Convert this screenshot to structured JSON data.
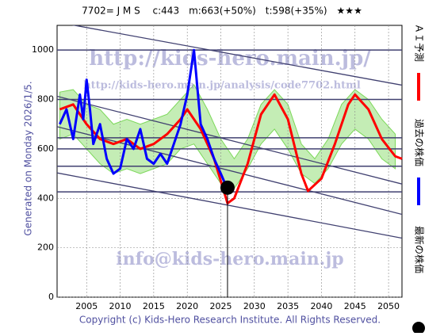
{
  "chart_data": {
    "type": "line",
    "title": "7702= J M S　 c:443　m:663(+50%)　t:598(+35%)　★★★",
    "subtitle": "Generated on Monday 2026/1/5.",
    "footer": "Copyright (c) Kids-Hero Research Institute. All Rights Reserved.",
    "watermarks": [
      "http://kids-hero.main.jp/",
      "http://kids-hero.main.jp/analysis/code7702.html",
      "info@kids-hero.main.jp"
    ],
    "xlim": [
      2000.6,
      2052
    ],
    "ylim": [
      0,
      1100
    ],
    "xticks": [
      2005,
      2010,
      2015,
      2020,
      2025,
      2030,
      2035,
      2040,
      2045,
      2050
    ],
    "yticks": [
      0,
      200,
      400,
      600,
      800,
      1000
    ],
    "grid": true,
    "hlines": [
      1000,
      800,
      645,
      600,
      530,
      426
    ],
    "trendlines": [
      [
        1113,
        858
      ],
      [
        813,
        458
      ],
      [
        690,
        335
      ],
      [
        503,
        239
      ]
    ],
    "band": {
      "color": "#7cd85a",
      "x": [
        2001,
        2003,
        2005,
        2007,
        2009,
        2011,
        2013,
        2015,
        2017,
        2019,
        2021,
        2023,
        2025,
        2027,
        2029,
        2031,
        2033,
        2035,
        2037,
        2039,
        2041,
        2043,
        2045,
        2047,
        2049,
        2051
      ],
      "upper": [
        830,
        840,
        780,
        760,
        700,
        720,
        700,
        720,
        740,
        800,
        860,
        760,
        640,
        560,
        640,
        780,
        840,
        780,
        620,
        560,
        640,
        780,
        840,
        800,
        720,
        660
      ],
      "lower": [
        640,
        660,
        600,
        540,
        500,
        520,
        500,
        520,
        540,
        600,
        620,
        540,
        460,
        440,
        520,
        620,
        680,
        600,
        500,
        460,
        520,
        620,
        680,
        640,
        560,
        520
      ]
    },
    "series": [
      {
        "name": "ＡＩ予測",
        "color": "#ff0000",
        "x": [
          2001,
          2003,
          2005,
          2007,
          2009,
          2011,
          2013,
          2015,
          2017,
          2019,
          2020,
          2022,
          2024,
          2026,
          2027,
          2029,
          2031,
          2033,
          2035,
          2037,
          2038,
          2040,
          2042,
          2044,
          2045,
          2047,
          2049,
          2051,
          2052
        ],
        "values": [
          760,
          780,
          700,
          640,
          620,
          640,
          600,
          620,
          660,
          720,
          760,
          680,
          560,
          380,
          400,
          540,
          740,
          820,
          720,
          500,
          430,
          480,
          620,
          780,
          820,
          760,
          640,
          570,
          560
        ]
      },
      {
        "name": "過去の株価",
        "color": "#0000ff",
        "x": [
          2001,
          2002,
          2003,
          2004,
          2004.5,
          2005,
          2005.5,
          2006,
          2007,
          2008,
          2009,
          2010,
          2011,
          2012,
          2013,
          2014,
          2015,
          2016,
          2017,
          2018,
          2019,
          2020,
          2021,
          2022,
          2023,
          2024,
          2025,
          2025.9
        ],
        "values": [
          700,
          760,
          640,
          820,
          720,
          880,
          760,
          620,
          700,
          560,
          500,
          520,
          640,
          600,
          680,
          560,
          540,
          580,
          540,
          620,
          700,
          820,
          1000,
          700,
          640,
          560,
          500,
          443
        ]
      }
    ],
    "latest": {
      "name": "最新の株価",
      "x": 2026,
      "value": 443,
      "color": "#000000"
    }
  }
}
